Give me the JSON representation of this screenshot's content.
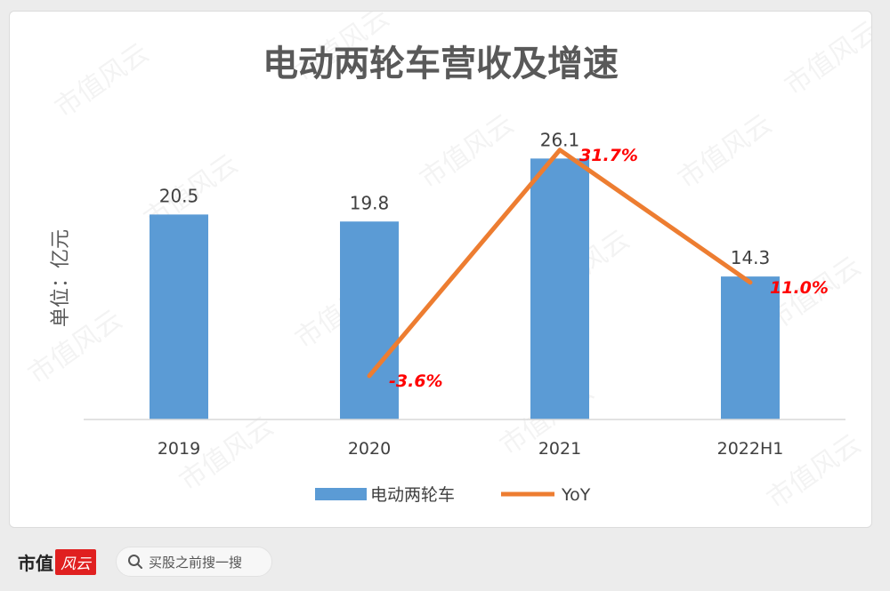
{
  "chart_data": {
    "type": "bar",
    "title": "电动两轮车营收及增速",
    "ylabel": "单位：亿元",
    "categories": [
      "2019",
      "2020",
      "2021",
      "2022H1"
    ],
    "series": [
      {
        "name": "电动两轮车",
        "type": "bar",
        "values": [
          20.5,
          19.8,
          26.1,
          14.3
        ],
        "color": "#5b9bd5"
      },
      {
        "name": "YoY",
        "type": "line",
        "values": [
          null,
          -3.6,
          31.7,
          11.0
        ],
        "labels": [
          "",
          "-3.6%",
          "31.7%",
          "11.0%"
        ],
        "color": "#ed7d31"
      }
    ],
    "ylim": [
      0,
      30
    ],
    "legend": "bottom",
    "grid": false
  },
  "watermark_text": "市值风云",
  "footer": {
    "brand_name": "市值",
    "brand_mark": "风云",
    "search_placeholder": "买股之前搜一搜"
  }
}
